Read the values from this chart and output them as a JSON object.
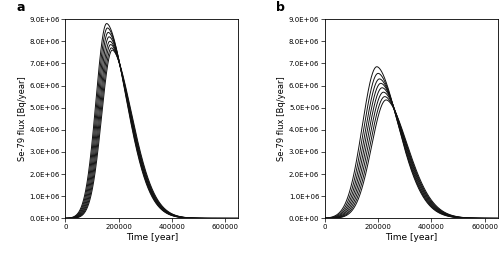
{
  "panel_a_peaks": [
    8800000.0,
    8600000.0,
    8400000.0,
    8200000.0,
    8000000.0,
    7850000.0,
    7700000.0,
    7600000.0
  ],
  "panel_a_peak_times": [
    155000,
    158000,
    161000,
    164000,
    167000,
    170000,
    173000,
    176000
  ],
  "panel_a_rise_sigma": 40000,
  "panel_a_fall_scale": 110000,
  "panel_a_fall_power": 1.8,
  "panel_b_peaks": [
    6850000.0,
    6550000.0,
    6300000.0,
    6100000.0,
    5900000.0,
    5700000.0,
    5500000.0,
    5350000.0
  ],
  "panel_b_peak_times": [
    195000,
    200000,
    205000,
    210000,
    215000,
    220000,
    225000,
    230000
  ],
  "panel_b_rise_sigma": 55000,
  "panel_b_fall_scale": 120000,
  "panel_b_fall_power": 1.8,
  "xmax": 650000,
  "ymax": 9000000.0,
  "xlabel": "Time [year]",
  "ylabel": "Se-79 flux [Bq/year]",
  "label_a": "a",
  "label_b": "b",
  "line_color": "#111111",
  "line_width": 0.7,
  "yticks": [
    0.0,
    1000000.0,
    2000000.0,
    3000000.0,
    4000000.0,
    5000000.0,
    6000000.0,
    7000000.0,
    8000000.0,
    9000000.0
  ],
  "ytick_labels": [
    "0.0E+00",
    "1.0E+06",
    "2.0E+06",
    "3.0E+06",
    "4.0E+06",
    "5.0E+06",
    "6.0E+06",
    "7.0E+06",
    "8.0E+06",
    "9.0E+06"
  ],
  "xticks": [
    0,
    200000,
    400000,
    600000
  ],
  "xtick_labels": [
    "0",
    "200000",
    "400000",
    "600000"
  ]
}
